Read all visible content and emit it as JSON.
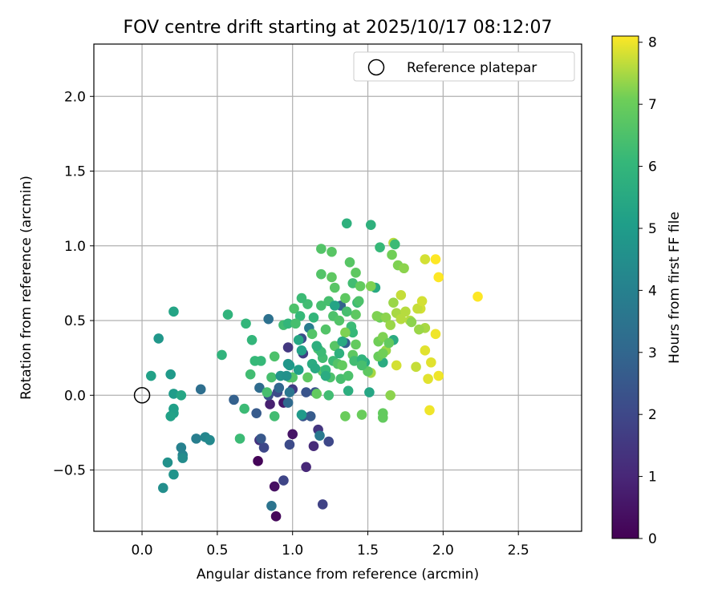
{
  "chart_data": {
    "type": "scatter",
    "title": "FOV centre drift starting at 2025/10/17 08:12:07",
    "xlabel": "Angular distance from reference (arcmin)",
    "ylabel": "Rotation from reference (arcmin)",
    "xlim": [
      -0.32,
      2.92
    ],
    "ylim": [
      -0.91,
      2.35
    ],
    "xticks": [
      0.0,
      0.5,
      1.0,
      1.5,
      2.0,
      2.5
    ],
    "xtick_labels": [
      "0.0",
      "0.5",
      "1.0",
      "1.5",
      "2.0",
      "2.5"
    ],
    "yticks": [
      -0.5,
      0.0,
      0.5,
      1.0,
      1.5,
      2.0
    ],
    "ytick_labels": [
      "−0.5",
      "0.0",
      "0.5",
      "1.0",
      "1.5",
      "2.0"
    ],
    "grid": true,
    "legend": {
      "placement": "top-right",
      "label": "Reference platepar"
    },
    "reference_point": {
      "x": 0.0,
      "y": 0.0
    },
    "colorbar": {
      "label": "Hours from first FF file",
      "min": 0,
      "max": 8.1,
      "ticks": [
        0,
        1,
        2,
        3,
        4,
        5,
        6,
        7,
        8
      ],
      "tick_labels": [
        "0",
        "1",
        "2",
        "3",
        "4",
        "5",
        "6",
        "7",
        "8"
      ],
      "colormap": "viridis"
    },
    "points": [
      {
        "x": 0.77,
        "y": -0.44,
        "h": 0.1
      },
      {
        "x": 0.89,
        "y": -0.81,
        "h": 0.2
      },
      {
        "x": 0.88,
        "y": -0.61,
        "h": 0.4
      },
      {
        "x": 1.0,
        "y": -0.26,
        "h": 0.5
      },
      {
        "x": 0.94,
        "y": -0.05,
        "h": 0.6
      },
      {
        "x": 0.85,
        "y": -0.06,
        "h": 0.8
      },
      {
        "x": 1.09,
        "y": -0.48,
        "h": 1.0
      },
      {
        "x": 1.14,
        "y": -0.34,
        "h": 1.1
      },
      {
        "x": 0.78,
        "y": -0.3,
        "h": 1.3
      },
      {
        "x": 1.17,
        "y": -0.23,
        "h": 1.4
      },
      {
        "x": 0.97,
        "y": 0.32,
        "h": 1.5
      },
      {
        "x": 1.0,
        "y": 0.04,
        "h": 1.6
      },
      {
        "x": 1.07,
        "y": 0.28,
        "h": 1.7
      },
      {
        "x": 1.2,
        "y": -0.73,
        "h": 1.8
      },
      {
        "x": 0.94,
        "y": -0.57,
        "h": 1.9
      },
      {
        "x": 1.24,
        "y": -0.31,
        "h": 2.0
      },
      {
        "x": 0.81,
        "y": -0.35,
        "h": 2.0
      },
      {
        "x": 0.98,
        "y": -0.33,
        "h": 2.1
      },
      {
        "x": 0.9,
        "y": 0.02,
        "h": 2.1
      },
      {
        "x": 1.06,
        "y": 0.38,
        "h": 2.2
      },
      {
        "x": 1.15,
        "y": 0.02,
        "h": 2.3
      },
      {
        "x": 0.84,
        "y": 0.0,
        "h": 2.3
      },
      {
        "x": 1.07,
        "y": -0.14,
        "h": 2.4
      },
      {
        "x": 1.09,
        "y": 0.02,
        "h": 2.4
      },
      {
        "x": 0.79,
        "y": -0.29,
        "h": 2.5
      },
      {
        "x": 0.76,
        "y": -0.12,
        "h": 2.6
      },
      {
        "x": 1.12,
        "y": -0.14,
        "h": 2.6
      },
      {
        "x": 1.35,
        "y": 0.35,
        "h": 2.7
      },
      {
        "x": 0.61,
        "y": -0.03,
        "h": 2.8
      },
      {
        "x": 1.32,
        "y": 0.6,
        "h": 2.9
      },
      {
        "x": 0.91,
        "y": 0.05,
        "h": 3.0
      },
      {
        "x": 0.97,
        "y": -0.05,
        "h": 3.1
      },
      {
        "x": 0.78,
        "y": 0.05,
        "h": 3.2
      },
      {
        "x": 0.39,
        "y": 0.04,
        "h": 3.3
      },
      {
        "x": 0.84,
        "y": 0.51,
        "h": 3.4
      },
      {
        "x": 0.86,
        "y": -0.74,
        "h": 3.5
      },
      {
        "x": 0.98,
        "y": 0.02,
        "h": 3.6
      },
      {
        "x": 1.18,
        "y": -0.27,
        "h": 3.7
      },
      {
        "x": 1.11,
        "y": 0.45,
        "h": 3.8
      },
      {
        "x": 0.36,
        "y": -0.29,
        "h": 3.9
      },
      {
        "x": 0.26,
        "y": -0.35,
        "h": 4.0
      },
      {
        "x": 0.27,
        "y": -0.4,
        "h": 4.1
      },
      {
        "x": 0.42,
        "y": -0.28,
        "h": 4.2
      },
      {
        "x": 0.45,
        "y": -0.3,
        "h": 4.3
      },
      {
        "x": 0.27,
        "y": -0.42,
        "h": 4.4
      },
      {
        "x": 0.14,
        "y": -0.62,
        "h": 4.5
      },
      {
        "x": 0.17,
        "y": -0.45,
        "h": 4.6
      },
      {
        "x": 0.21,
        "y": -0.53,
        "h": 4.7
      },
      {
        "x": 0.11,
        "y": 0.38,
        "h": 4.8
      },
      {
        "x": 0.19,
        "y": 0.14,
        "h": 4.9
      },
      {
        "x": 0.21,
        "y": 0.01,
        "h": 5.0
      },
      {
        "x": 0.21,
        "y": -0.09,
        "h": 5.1
      },
      {
        "x": 0.21,
        "y": -0.12,
        "h": 5.1
      },
      {
        "x": 0.19,
        "y": -0.14,
        "h": 5.2
      },
      {
        "x": 0.06,
        "y": 0.13,
        "h": 5.2
      },
      {
        "x": 0.21,
        "y": 0.56,
        "h": 5.3
      },
      {
        "x": 0.26,
        "y": 0.0,
        "h": 5.4
      },
      {
        "x": 1.51,
        "y": 0.02,
        "h": 5.4
      },
      {
        "x": 1.48,
        "y": 0.22,
        "h": 5.5
      },
      {
        "x": 1.55,
        "y": 0.72,
        "h": 5.5
      },
      {
        "x": 1.6,
        "y": 0.22,
        "h": 5.6
      },
      {
        "x": 1.67,
        "y": 0.37,
        "h": 5.6
      },
      {
        "x": 1.37,
        "y": 0.03,
        "h": 5.7
      },
      {
        "x": 1.52,
        "y": 1.14,
        "h": 5.8
      },
      {
        "x": 1.36,
        "y": 1.15,
        "h": 5.8
      },
      {
        "x": 0.57,
        "y": 0.54,
        "h": 5.9
      },
      {
        "x": 0.53,
        "y": 0.27,
        "h": 5.9
      },
      {
        "x": 0.69,
        "y": 0.48,
        "h": 6.0
      },
      {
        "x": 0.73,
        "y": 0.37,
        "h": 6.0
      },
      {
        "x": 0.75,
        "y": 0.23,
        "h": 6.1
      },
      {
        "x": 0.79,
        "y": 0.23,
        "h": 6.1
      },
      {
        "x": 0.65,
        "y": -0.29,
        "h": 6.2
      },
      {
        "x": 0.68,
        "y": -0.09,
        "h": 6.2
      },
      {
        "x": 0.88,
        "y": -0.14,
        "h": 6.3
      },
      {
        "x": 0.72,
        "y": 0.14,
        "h": 6.3
      },
      {
        "x": 0.83,
        "y": 0.02,
        "h": 6.4
      },
      {
        "x": 0.86,
        "y": 0.12,
        "h": 6.4
      },
      {
        "x": 0.88,
        "y": 0.26,
        "h": 6.5
      },
      {
        "x": 1.01,
        "y": 0.58,
        "h": 6.5
      },
      {
        "x": 1.13,
        "y": 0.41,
        "h": 6.6
      },
      {
        "x": 1.19,
        "y": 0.98,
        "h": 6.6
      },
      {
        "x": 1.26,
        "y": 0.96,
        "h": 6.7
      },
      {
        "x": 1.38,
        "y": 0.89,
        "h": 6.7
      },
      {
        "x": 1.42,
        "y": 0.82,
        "h": 6.8
      },
      {
        "x": 1.42,
        "y": 0.54,
        "h": 6.8
      },
      {
        "x": 1.6,
        "y": -0.12,
        "h": 6.9
      },
      {
        "x": 1.6,
        "y": -0.15,
        "h": 6.9
      },
      {
        "x": 1.46,
        "y": -0.13,
        "h": 7.0
      },
      {
        "x": 1.35,
        "y": -0.14,
        "h": 7.0
      },
      {
        "x": 1.66,
        "y": 0.94,
        "h": 7.1
      },
      {
        "x": 1.7,
        "y": 0.87,
        "h": 7.2
      },
      {
        "x": 1.74,
        "y": 0.85,
        "h": 7.3
      },
      {
        "x": 1.65,
        "y": 0.0,
        "h": 7.3
      },
      {
        "x": 1.62,
        "y": 0.3,
        "h": 7.4
      },
      {
        "x": 1.88,
        "y": 0.45,
        "h": 7.5
      },
      {
        "x": 1.78,
        "y": 0.5,
        "h": 7.6
      },
      {
        "x": 1.72,
        "y": 0.67,
        "h": 7.7
      },
      {
        "x": 1.88,
        "y": 0.91,
        "h": 7.8
      },
      {
        "x": 1.88,
        "y": 0.3,
        "h": 7.9
      },
      {
        "x": 1.9,
        "y": 0.11,
        "h": 7.9
      },
      {
        "x": 1.91,
        "y": -0.1,
        "h": 8.0
      },
      {
        "x": 1.95,
        "y": 0.91,
        "h": 8.1
      },
      {
        "x": 1.97,
        "y": 0.79,
        "h": 8.1
      },
      {
        "x": 2.23,
        "y": 0.66,
        "h": 8.1
      },
      {
        "x": 1.97,
        "y": 0.13,
        "h": 8.0
      },
      {
        "x": 1.92,
        "y": 0.22,
        "h": 7.9
      },
      {
        "x": 1.95,
        "y": 0.41,
        "h": 8.0
      },
      {
        "x": 1.85,
        "y": 0.58,
        "h": 7.8
      },
      {
        "x": 1.82,
        "y": 0.19,
        "h": 7.7
      },
      {
        "x": 1.69,
        "y": 0.2,
        "h": 7.8
      },
      {
        "x": 1.16,
        "y": 0.01,
        "h": 6.9
      },
      {
        "x": 1.2,
        "y": 0.16,
        "h": 6.7
      },
      {
        "x": 1.1,
        "y": 0.12,
        "h": 6.8
      },
      {
        "x": 1.0,
        "y": 0.12,
        "h": 6.6
      },
      {
        "x": 0.98,
        "y": 0.12,
        "h": 6.6
      },
      {
        "x": 1.24,
        "y": 0.0,
        "h": 6.3
      },
      {
        "x": 1.27,
        "y": 0.23,
        "h": 6.2
      },
      {
        "x": 1.32,
        "y": 0.11,
        "h": 6.4
      },
      {
        "x": 1.17,
        "y": 0.31,
        "h": 6.5
      },
      {
        "x": 1.2,
        "y": 0.25,
        "h": 6.3
      },
      {
        "x": 1.27,
        "y": 0.53,
        "h": 6.5
      },
      {
        "x": 1.31,
        "y": 0.5,
        "h": 6.6
      },
      {
        "x": 1.36,
        "y": 0.56,
        "h": 6.4
      },
      {
        "x": 1.39,
        "y": 0.46,
        "h": 6.2
      },
      {
        "x": 1.4,
        "y": 0.42,
        "h": 6.1
      },
      {
        "x": 1.43,
        "y": 0.62,
        "h": 6.2
      },
      {
        "x": 1.44,
        "y": 0.63,
        "h": 6.5
      },
      {
        "x": 1.24,
        "y": 0.63,
        "h": 6.4
      },
      {
        "x": 1.28,
        "y": 0.72,
        "h": 6.7
      },
      {
        "x": 1.19,
        "y": 0.81,
        "h": 6.6
      },
      {
        "x": 1.26,
        "y": 0.79,
        "h": 6.8
      },
      {
        "x": 1.35,
        "y": 0.65,
        "h": 6.8
      },
      {
        "x": 1.4,
        "y": 0.75,
        "h": 6.3
      },
      {
        "x": 1.45,
        "y": 0.73,
        "h": 6.9
      },
      {
        "x": 1.46,
        "y": 0.23,
        "h": 6.7
      },
      {
        "x": 1.58,
        "y": 0.52,
        "h": 7.0
      },
      {
        "x": 1.57,
        "y": 0.36,
        "h": 7.1
      },
      {
        "x": 1.56,
        "y": 0.53,
        "h": 7.2
      },
      {
        "x": 1.6,
        "y": 0.39,
        "h": 7.2
      },
      {
        "x": 1.62,
        "y": 0.52,
        "h": 7.3
      },
      {
        "x": 1.65,
        "y": 0.47,
        "h": 7.4
      },
      {
        "x": 1.67,
        "y": 0.62,
        "h": 7.4
      },
      {
        "x": 1.69,
        "y": 0.55,
        "h": 7.5
      },
      {
        "x": 1.72,
        "y": 0.51,
        "h": 7.6
      },
      {
        "x": 1.75,
        "y": 0.56,
        "h": 7.6
      },
      {
        "x": 1.79,
        "y": 0.49,
        "h": 7.3
      },
      {
        "x": 1.84,
        "y": 0.44,
        "h": 7.4
      },
      {
        "x": 1.83,
        "y": 0.58,
        "h": 7.7
      },
      {
        "x": 1.86,
        "y": 0.63,
        "h": 7.8
      },
      {
        "x": 1.67,
        "y": 1.02,
        "h": 7.6
      },
      {
        "x": 1.52,
        "y": 0.73,
        "h": 7.2
      },
      {
        "x": 1.57,
        "y": 0.26,
        "h": 7.0
      },
      {
        "x": 1.52,
        "y": 0.15,
        "h": 7.5
      },
      {
        "x": 1.6,
        "y": 0.28,
        "h": 7.1
      },
      {
        "x": 1.64,
        "y": 0.35,
        "h": 6.9
      },
      {
        "x": 1.14,
        "y": 0.52,
        "h": 6.0
      },
      {
        "x": 1.1,
        "y": 0.61,
        "h": 6.3
      },
      {
        "x": 1.05,
        "y": 0.53,
        "h": 6.1
      },
      {
        "x": 1.06,
        "y": 0.65,
        "h": 6.2
      },
      {
        "x": 1.19,
        "y": 0.6,
        "h": 6.4
      },
      {
        "x": 0.94,
        "y": 0.47,
        "h": 6.3
      },
      {
        "x": 0.97,
        "y": 0.48,
        "h": 6.0
      },
      {
        "x": 1.02,
        "y": 0.48,
        "h": 6.4
      },
      {
        "x": 1.19,
        "y": 0.29,
        "h": 6.2
      },
      {
        "x": 1.22,
        "y": 0.17,
        "h": 6.1
      },
      {
        "x": 1.25,
        "y": 0.12,
        "h": 6.5
      },
      {
        "x": 1.3,
        "y": 0.21,
        "h": 6.6
      },
      {
        "x": 1.22,
        "y": 0.44,
        "h": 6.6
      },
      {
        "x": 1.28,
        "y": 0.33,
        "h": 6.7
      },
      {
        "x": 1.33,
        "y": 0.2,
        "h": 6.9
      },
      {
        "x": 1.4,
        "y": 0.27,
        "h": 6.8
      },
      {
        "x": 1.42,
        "y": 0.34,
        "h": 6.9
      },
      {
        "x": 1.35,
        "y": 0.42,
        "h": 7.2
      },
      {
        "x": 1.37,
        "y": 0.13,
        "h": 6.5
      },
      {
        "x": 1.5,
        "y": 0.16,
        "h": 6.8
      },
      {
        "x": 1.41,
        "y": 0.23,
        "h": 6.3
      },
      {
        "x": 1.46,
        "y": 0.24,
        "h": 5.9
      },
      {
        "x": 1.58,
        "y": 0.99,
        "h": 6.1
      },
      {
        "x": 1.68,
        "y": 1.01,
        "h": 6.2
      },
      {
        "x": 1.46,
        "y": 0.2,
        "h": 6.4
      },
      {
        "x": 1.33,
        "y": 0.36,
        "h": 5.5
      },
      {
        "x": 1.28,
        "y": 0.6,
        "h": 5.3
      },
      {
        "x": 1.31,
        "y": 0.28,
        "h": 5.8
      },
      {
        "x": 1.16,
        "y": 0.33,
        "h": 5.7
      },
      {
        "x": 1.13,
        "y": 0.21,
        "h": 5.6
      },
      {
        "x": 1.04,
        "y": 0.37,
        "h": 5.4
      },
      {
        "x": 1.06,
        "y": 0.3,
        "h": 5.2
      },
      {
        "x": 1.04,
        "y": 0.17,
        "h": 5.1
      },
      {
        "x": 0.98,
        "y": 0.2,
        "h": 5.0
      },
      {
        "x": 1.06,
        "y": -0.13,
        "h": 4.9
      },
      {
        "x": 0.92,
        "y": 0.13,
        "h": 4.7
      },
      {
        "x": 0.96,
        "y": 0.13,
        "h": 4.6
      },
      {
        "x": 0.97,
        "y": 0.21,
        "h": 4.8
      },
      {
        "x": 1.15,
        "y": 0.18,
        "h": 5.5
      },
      {
        "x": 1.22,
        "y": 0.13,
        "h": 5.6
      }
    ]
  }
}
